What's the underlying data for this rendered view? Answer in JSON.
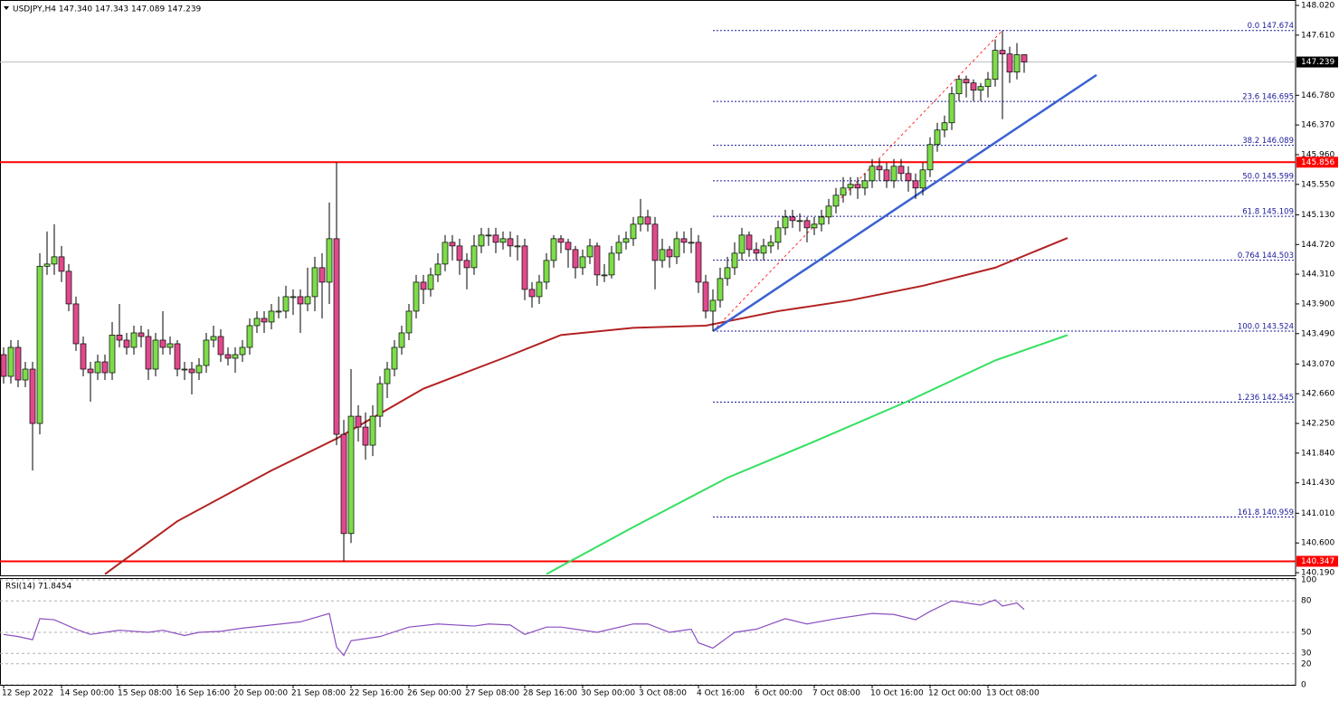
{
  "chart_data": {
    "type": "candlestick",
    "header": "USDJPY,H4  147.340 147.343 147.089 147.239",
    "up_color": "#7ddc4a",
    "down_color": "#e04a8c",
    "ylim": [
      140.153,
      148.095
    ],
    "yticks": [
      {
        "value": 140.19,
        "label": "140.190"
      },
      {
        "value": 140.6,
        "label": "140.600"
      },
      {
        "value": 141.01,
        "label": "141.010"
      },
      {
        "value": 141.43,
        "label": "141.430"
      },
      {
        "value": 141.84,
        "label": "141.840"
      },
      {
        "value": 142.25,
        "label": "142.250"
      },
      {
        "value": 142.66,
        "label": "142.660"
      },
      {
        "value": 143.07,
        "label": "143.070"
      },
      {
        "value": 143.49,
        "label": "143.490"
      },
      {
        "value": 143.9,
        "label": "143.900"
      },
      {
        "value": 144.31,
        "label": "144.310"
      },
      {
        "value": 144.72,
        "label": "144.720"
      },
      {
        "value": 145.13,
        "label": "145.130"
      },
      {
        "value": 145.55,
        "label": "145.550"
      },
      {
        "value": 145.96,
        "label": "145.960"
      },
      {
        "value": 146.37,
        "label": "146.370"
      },
      {
        "value": 146.78,
        "label": "146.780"
      },
      {
        "value": 147.61,
        "label": "147.610"
      },
      {
        "value": 148.02,
        "label": "148.020"
      }
    ],
    "categories": [
      "12 Sep 2022",
      null,
      null,
      null,
      null,
      null,
      null,
      null,
      "14 Sep 00:00",
      null,
      null,
      null,
      null,
      null,
      null,
      null,
      "15 Sep 08:00",
      null,
      null,
      null,
      null,
      null,
      null,
      null,
      "16 Sep 16:00",
      null,
      null,
      null,
      null,
      null,
      null,
      null,
      "20 Sep 00:00",
      null,
      null,
      null,
      null,
      null,
      null,
      null,
      "21 Sep 08:00",
      null,
      null,
      null,
      null,
      null,
      null,
      null,
      "22 Sep 16:00",
      null,
      null,
      null,
      null,
      null,
      null,
      null,
      "26 Sep 00:00",
      null,
      null,
      null,
      null,
      null,
      null,
      null,
      "27 Sep 08:00",
      null,
      null,
      null,
      null,
      null,
      null,
      null,
      "28 Sep 16:00",
      null,
      null,
      null,
      null,
      null,
      null,
      null,
      "30 Sep 00:00",
      null,
      null,
      null,
      null,
      null,
      null,
      null,
      "3 Oct 08:00",
      null,
      null,
      null,
      null,
      null,
      null,
      null,
      "4 Oct 16:00",
      null,
      null,
      null,
      null,
      null,
      null,
      null,
      "6 Oct 00:00",
      null,
      null,
      null,
      null,
      null,
      null,
      null,
      "7 Oct 08:00",
      null,
      null,
      null,
      null,
      null,
      null,
      null,
      "10 Oct 16:00",
      null,
      null,
      null,
      null,
      null,
      null,
      null,
      "12 Oct 00:00",
      null,
      null,
      null,
      null,
      null,
      null,
      null,
      "13 Oct 08:00",
      null,
      null,
      null,
      null,
      null
    ],
    "candles": [
      [
        143.2,
        143.3,
        142.8,
        142.9
      ],
      [
        142.9,
        143.4,
        142.8,
        143.3
      ],
      [
        143.3,
        143.4,
        142.75,
        142.85
      ],
      [
        142.85,
        143.1,
        142.75,
        143.0
      ],
      [
        143.0,
        143.1,
        141.6,
        142.25
      ],
      [
        142.25,
        144.6,
        142.1,
        144.42
      ],
      [
        144.42,
        144.9,
        144.3,
        144.45
      ],
      [
        144.45,
        145.0,
        144.3,
        144.55
      ],
      [
        144.55,
        144.7,
        144.2,
        144.35
      ],
      [
        144.35,
        144.45,
        143.8,
        143.9
      ],
      [
        143.9,
        144.0,
        143.25,
        143.35
      ],
      [
        143.35,
        143.45,
        142.9,
        143.0
      ],
      [
        143.0,
        143.1,
        142.55,
        142.95
      ],
      [
        142.95,
        143.2,
        142.85,
        143.1
      ],
      [
        143.1,
        143.2,
        142.85,
        142.95
      ],
      [
        142.95,
        143.65,
        142.85,
        143.47
      ],
      [
        143.47,
        143.9,
        143.3,
        143.4
      ],
      [
        143.4,
        143.5,
        143.2,
        143.3
      ],
      [
        143.3,
        143.6,
        143.2,
        143.5
      ],
      [
        143.5,
        143.6,
        143.3,
        143.45
      ],
      [
        143.45,
        143.55,
        142.85,
        143.0
      ],
      [
        143.0,
        143.5,
        142.9,
        143.4
      ],
      [
        143.4,
        143.8,
        143.2,
        143.3
      ],
      [
        143.3,
        143.45,
        143.2,
        143.35
      ],
      [
        143.35,
        143.4,
        142.9,
        143.0
      ],
      [
        143.0,
        143.1,
        142.85,
        143.0
      ],
      [
        143.0,
        143.1,
        142.65,
        142.95
      ],
      [
        142.95,
        143.15,
        142.85,
        143.05
      ],
      [
        143.05,
        143.5,
        142.95,
        143.4
      ],
      [
        143.4,
        143.6,
        143.3,
        143.45
      ],
      [
        143.45,
        143.55,
        143.1,
        143.2
      ],
      [
        143.2,
        143.3,
        143.05,
        143.15
      ],
      [
        143.15,
        143.3,
        142.95,
        143.2
      ],
      [
        143.2,
        143.4,
        143.1,
        143.3
      ],
      [
        143.3,
        143.7,
        143.2,
        143.6
      ],
      [
        143.6,
        143.8,
        143.5,
        143.7
      ],
      [
        143.7,
        143.8,
        143.5,
        143.65
      ],
      [
        143.65,
        143.9,
        143.55,
        143.8
      ],
      [
        143.8,
        144.0,
        143.7,
        143.8
      ],
      [
        143.8,
        144.15,
        143.7,
        144.0
      ],
      [
        144.0,
        144.1,
        143.75,
        144.0
      ],
      [
        144.0,
        144.1,
        143.5,
        143.9
      ],
      [
        143.9,
        144.4,
        143.8,
        144.0
      ],
      [
        144.0,
        144.55,
        143.8,
        144.4
      ],
      [
        144.4,
        144.6,
        143.7,
        144.2
      ],
      [
        144.2,
        145.3,
        143.9,
        144.8
      ],
      [
        144.8,
        145.856,
        141.95,
        142.1
      ],
      [
        142.1,
        142.3,
        140.347,
        140.73
      ],
      [
        140.73,
        143.0,
        140.6,
        142.35
      ],
      [
        142.35,
        142.5,
        142.0,
        142.2
      ],
      [
        142.2,
        142.4,
        141.75,
        141.95
      ],
      [
        141.95,
        142.5,
        141.8,
        142.35
      ],
      [
        142.35,
        142.9,
        142.2,
        142.8
      ],
      [
        142.8,
        143.1,
        142.6,
        143.0
      ],
      [
        143.0,
        143.4,
        142.9,
        143.3
      ],
      [
        143.3,
        143.6,
        143.2,
        143.5
      ],
      [
        143.5,
        143.9,
        143.4,
        143.8
      ],
      [
        143.8,
        144.3,
        143.7,
        144.2
      ],
      [
        144.2,
        144.3,
        143.9,
        144.1
      ],
      [
        144.1,
        144.4,
        144.0,
        144.3
      ],
      [
        144.3,
        144.6,
        144.2,
        144.45
      ],
      [
        144.45,
        144.85,
        144.35,
        144.75
      ],
      [
        144.75,
        144.85,
        144.5,
        144.7
      ],
      [
        144.7,
        144.8,
        144.3,
        144.5
      ],
      [
        144.5,
        144.6,
        144.1,
        144.4
      ],
      [
        144.4,
        144.85,
        144.3,
        144.7
      ],
      [
        144.7,
        144.95,
        144.6,
        144.85
      ],
      [
        144.85,
        144.95,
        144.7,
        144.85
      ],
      [
        144.85,
        144.95,
        144.6,
        144.75
      ],
      [
        144.75,
        144.9,
        144.65,
        144.8
      ],
      [
        144.8,
        144.9,
        144.55,
        144.7
      ],
      [
        144.7,
        144.85,
        144.5,
        144.7
      ],
      [
        144.7,
        144.8,
        143.95,
        144.1
      ],
      [
        144.1,
        144.2,
        143.85,
        144.0
      ],
      [
        144.0,
        144.3,
        143.9,
        144.2
      ],
      [
        144.2,
        144.6,
        144.1,
        144.5
      ],
      [
        144.5,
        144.85,
        144.4,
        144.8
      ],
      [
        144.8,
        144.85,
        144.6,
        144.75
      ],
      [
        144.75,
        144.8,
        144.4,
        144.65
      ],
      [
        144.65,
        144.7,
        144.25,
        144.4
      ],
      [
        144.4,
        144.65,
        144.3,
        144.55
      ],
      [
        144.55,
        144.8,
        144.45,
        144.7
      ],
      [
        144.7,
        144.75,
        144.15,
        144.3
      ],
      [
        144.3,
        144.45,
        144.2,
        144.3
      ],
      [
        144.3,
        144.7,
        144.25,
        144.6
      ],
      [
        144.6,
        144.85,
        144.5,
        144.75
      ],
      [
        144.75,
        144.9,
        144.65,
        144.8
      ],
      [
        144.8,
        145.1,
        144.7,
        145.0
      ],
      [
        145.0,
        145.35,
        144.9,
        145.1
      ],
      [
        145.1,
        145.2,
        144.9,
        145.0
      ],
      [
        145.0,
        145.1,
        144.1,
        144.5
      ],
      [
        144.5,
        144.8,
        144.4,
        144.65
      ],
      [
        144.65,
        144.7,
        144.4,
        144.55
      ],
      [
        144.55,
        144.9,
        144.45,
        144.8
      ],
      [
        144.8,
        144.9,
        144.6,
        144.75
      ],
      [
        144.75,
        144.95,
        144.6,
        144.75
      ],
      [
        144.75,
        144.85,
        144.05,
        144.2
      ],
      [
        144.2,
        144.3,
        143.7,
        143.8
      ],
      [
        143.8,
        144.1,
        143.524,
        143.95
      ],
      [
        143.95,
        144.4,
        143.85,
        144.25
      ],
      [
        144.25,
        144.55,
        144.15,
        144.4
      ],
      [
        144.4,
        144.75,
        144.3,
        144.6
      ],
      [
        144.6,
        144.95,
        144.5,
        144.85
      ],
      [
        144.85,
        144.9,
        144.55,
        144.65
      ],
      [
        144.65,
        144.75,
        144.5,
        144.6
      ],
      [
        144.6,
        144.8,
        144.5,
        144.7
      ],
      [
        144.7,
        144.85,
        144.6,
        144.75
      ],
      [
        144.75,
        145.05,
        144.65,
        144.95
      ],
      [
        144.95,
        145.2,
        144.85,
        145.1
      ],
      [
        145.1,
        145.2,
        144.95,
        145.05
      ],
      [
        145.05,
        145.15,
        144.9,
        145.05
      ],
      [
        145.05,
        145.1,
        144.75,
        144.95
      ],
      [
        144.95,
        145.1,
        144.85,
        145.0
      ],
      [
        145.0,
        145.2,
        144.9,
        145.1
      ],
      [
        145.1,
        145.35,
        145.0,
        145.25
      ],
      [
        145.25,
        145.5,
        145.15,
        145.4
      ],
      [
        145.4,
        145.65,
        145.3,
        145.5
      ],
      [
        145.5,
        145.65,
        145.4,
        145.55
      ],
      [
        145.55,
        145.65,
        145.35,
        145.5
      ],
      [
        145.5,
        145.7,
        145.4,
        145.6
      ],
      [
        145.6,
        145.9,
        145.5,
        145.8
      ],
      [
        145.8,
        145.9,
        145.6,
        145.75
      ],
      [
        145.75,
        145.85,
        145.5,
        145.6
      ],
      [
        145.6,
        145.9,
        145.5,
        145.8
      ],
      [
        145.8,
        145.9,
        145.6,
        145.7
      ],
      [
        145.7,
        145.8,
        145.45,
        145.6
      ],
      [
        145.6,
        145.7,
        145.35,
        145.5
      ],
      [
        145.5,
        145.85,
        145.4,
        145.75
      ],
      [
        145.75,
        146.2,
        145.65,
        146.1
      ],
      [
        146.1,
        146.4,
        146.0,
        146.3
      ],
      [
        146.3,
        146.5,
        146.2,
        146.4
      ],
      [
        146.4,
        146.9,
        146.3,
        146.8
      ],
      [
        146.8,
        147.05,
        146.7,
        147.0
      ],
      [
        147.0,
        147.05,
        146.75,
        146.95
      ],
      [
        146.95,
        147.0,
        146.7,
        146.85
      ],
      [
        146.85,
        146.95,
        146.7,
        146.9
      ],
      [
        146.9,
        147.1,
        146.75,
        147.0
      ],
      [
        147.0,
        147.55,
        146.9,
        147.4
      ],
      [
        147.4,
        147.674,
        146.45,
        147.35
      ],
      [
        147.35,
        147.45,
        146.95,
        147.1
      ],
      [
        147.1,
        147.5,
        147.0,
        147.34
      ],
      [
        147.34,
        147.343,
        147.089,
        147.239
      ]
    ],
    "moving_averages": [
      {
        "color": "#b22222",
        "x": [
          14,
          24,
          37,
          46,
          58,
          69,
          77,
          87,
          97,
          107,
          117,
          127,
          137,
          147
        ],
        "values": [
          140.17,
          140.9,
          141.6,
          142.04,
          142.73,
          143.15,
          143.47,
          143.57,
          143.6,
          143.8,
          143.95,
          144.15,
          144.4,
          144.81
        ]
      },
      {
        "color": "#33e060",
        "x": [
          75,
          87,
          100,
          112,
          125,
          137,
          147
        ],
        "values": [
          140.17,
          140.82,
          141.5,
          142.0,
          142.56,
          143.12,
          143.47
        ]
      }
    ],
    "hlines": [
      {
        "value": 145.856,
        "label": "145.856",
        "color": "#ff0000",
        "box_color": "#ff0000"
      },
      {
        "value": 140.347,
        "label": "140.347",
        "color": "#ff0000",
        "box_color": "#ff0000"
      },
      {
        "value": 147.239,
        "label": "147.239",
        "color": "#c0c0c0",
        "box_color": "#000000"
      }
    ],
    "trendline": {
      "color": "#3a62d0",
      "x": [
        98,
        151
      ],
      "values": [
        143.524,
        147.06
      ]
    },
    "fib": {
      "x": [
        98,
        138
      ],
      "color": "#1a1a9a",
      "levels": [
        {
          "value": 147.674,
          "label": "0.0 147.674"
        },
        {
          "value": 146.695,
          "label": "23.6 146.695"
        },
        {
          "value": 146.089,
          "label": "38.2 146.089"
        },
        {
          "value": 145.599,
          "label": "50.0 145.599"
        },
        {
          "value": 145.109,
          "label": "61.8 145.109"
        },
        {
          "value": 144.503,
          "label": "0.764 144.503"
        },
        {
          "value": 143.524,
          "label": "100.0 143.524"
        },
        {
          "value": 142.545,
          "label": "1.236 142.545"
        },
        {
          "value": 140.959,
          "label": "161.8 140.959"
        }
      ]
    },
    "rsi": {
      "title": "RSI(14) 71.8454",
      "color": "#8a4fc0",
      "ylim": [
        0,
        100
      ],
      "yticks": [
        0,
        20,
        30,
        50,
        80,
        100
      ],
      "x": [
        0,
        2,
        4,
        5,
        7,
        10,
        12,
        16,
        20,
        22,
        25,
        27,
        30,
        33,
        37,
        41,
        45,
        46,
        47,
        48,
        52,
        56,
        60,
        65,
        67,
        70,
        72,
        75,
        77,
        82,
        87,
        89,
        92,
        95,
        96,
        98,
        100,
        101,
        104,
        108,
        111,
        115,
        120,
        123,
        126,
        128,
        131,
        133,
        135,
        137,
        138,
        140,
        141
      ],
      "values": [
        48,
        46,
        43,
        63,
        62,
        53,
        48,
        52,
        50,
        52,
        47,
        50,
        51,
        54,
        57,
        60,
        68,
        36,
        28,
        42,
        46,
        55,
        58,
        56,
        58,
        57,
        48,
        55,
        55,
        50,
        58,
        58,
        50,
        53,
        40,
        35,
        45,
        50,
        53,
        63,
        58,
        63,
        68,
        67,
        62,
        70,
        80,
        78,
        76,
        81,
        75,
        78,
        71.8454
      ]
    }
  }
}
